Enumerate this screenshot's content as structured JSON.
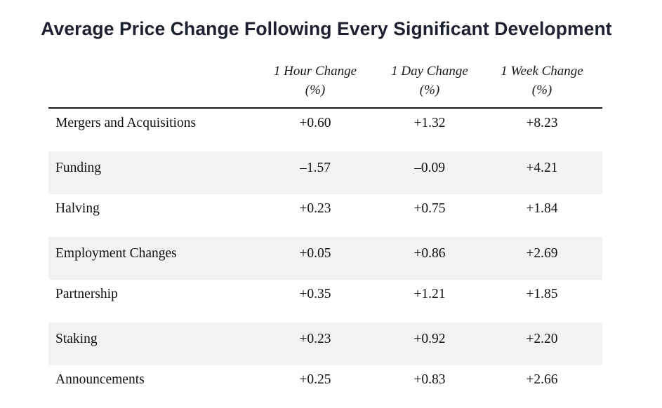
{
  "chart_data": {
    "type": "table",
    "title": "Average Price Change Following Every Significant Development",
    "columns": [
      {
        "line1": "1 Hour Change",
        "line2": "(%)"
      },
      {
        "line1": "1 Day Change",
        "line2": "(%)"
      },
      {
        "line1": "1 Week Change",
        "line2": "(%)"
      }
    ],
    "rows": [
      {
        "label": "Mergers and Acquisitions",
        "values": [
          "+0.60",
          "+1.32",
          "+8.23"
        ]
      },
      {
        "label": "Funding",
        "values": [
          "–1.57",
          "–0.09",
          "+4.21"
        ]
      },
      {
        "label": "Halving",
        "values": [
          "+0.23",
          "+0.75",
          "+1.84"
        ]
      },
      {
        "label": "Employment Changes",
        "values": [
          "+0.05",
          "+0.86",
          "+2.69"
        ]
      },
      {
        "label": "Partnership",
        "values": [
          "+0.35",
          "+1.21",
          "+1.85"
        ]
      },
      {
        "label": "Staking",
        "values": [
          "+0.23",
          "+0.92",
          "+2.20"
        ]
      },
      {
        "label": "Announcements",
        "values": [
          "+0.25",
          "+0.83",
          "+2.66"
        ]
      }
    ],
    "shaded_row_color": "#f2f2f2",
    "title_color": "#1b2130"
  }
}
